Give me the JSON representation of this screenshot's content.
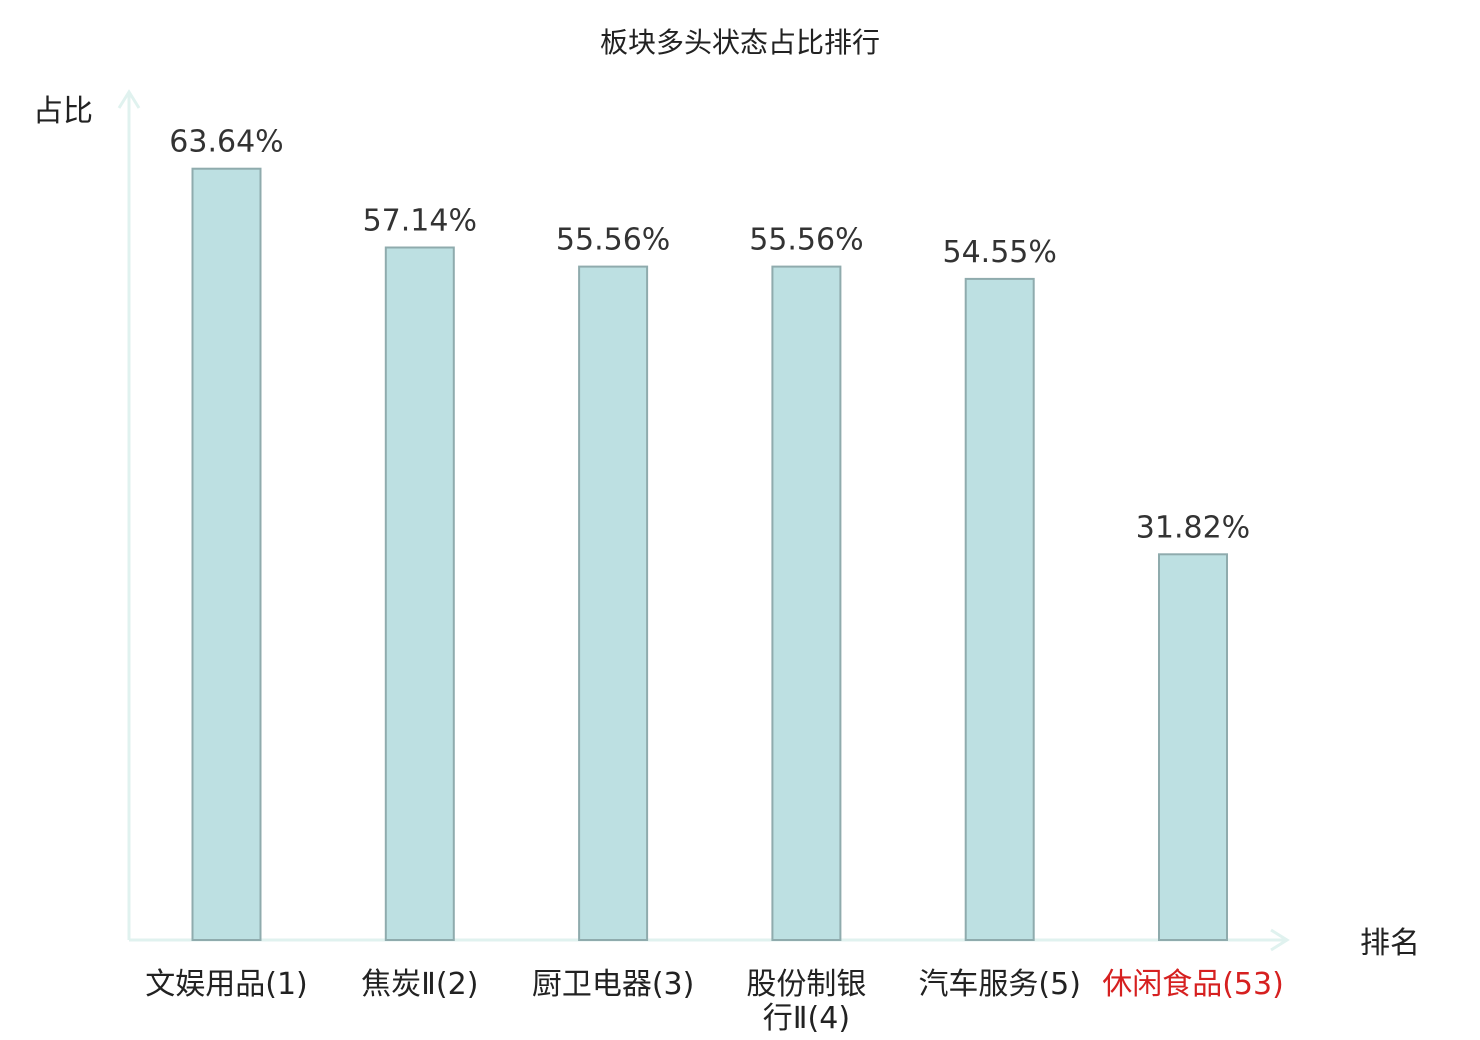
{
  "chart_data": {
    "type": "bar",
    "title": "板块多头状态占比排行",
    "ylabel": "占比",
    "xlabel": "排名",
    "categories": [
      {
        "name": "文娱用品",
        "rank": "(1)"
      },
      {
        "name": "焦炭Ⅱ",
        "rank": "(2)"
      },
      {
        "name": "厨卫电器",
        "rank": "(3)"
      },
      {
        "name": "股份制银行Ⅱ",
        "rank": "(4)",
        "lines": [
          "股份制银",
          "行Ⅱ(4)"
        ]
      },
      {
        "name": "汽车服务",
        "rank": "(5)"
      },
      {
        "name": "休闲食品",
        "rank": "(53)",
        "highlight": true
      }
    ],
    "values": [
      63.64,
      57.14,
      55.56,
      55.56,
      54.55,
      31.82
    ],
    "value_labels": [
      "63.64%",
      "57.14%",
      "55.56%",
      "55.56%",
      "54.55%",
      "31.82%"
    ],
    "ylim": [
      0,
      70
    ],
    "grid": false,
    "colors": {
      "bar_fill": "#bde0e2",
      "bar_stroke": "#8fabad",
      "axis": "#e0f2ef",
      "highlight_text": "#d62020",
      "normal_text": "#222222"
    }
  }
}
